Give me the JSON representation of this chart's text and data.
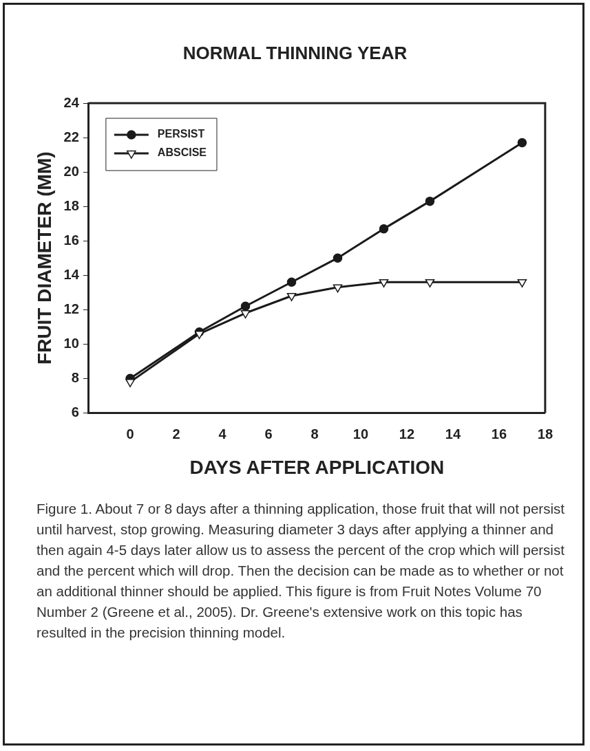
{
  "chart_data": {
    "type": "line",
    "title": "NORMAL THINNING YEAR",
    "xlabel": "DAYS AFTER APPLICATION",
    "ylabel": "FRUIT DIAMETER (MM)",
    "x": [
      0,
      3,
      5,
      7,
      9,
      11,
      13,
      17
    ],
    "series": [
      {
        "name": "PERSIST",
        "color": "#1a1a1a",
        "marker": "circle",
        "values": [
          8.0,
          10.7,
          12.2,
          13.6,
          15.0,
          16.7,
          18.3,
          21.7
        ]
      },
      {
        "name": "ABSCISE",
        "color": "#1a1a1a",
        "marker": "triangle",
        "values": [
          7.8,
          10.6,
          11.8,
          12.8,
          13.3,
          13.6,
          13.6,
          13.6
        ]
      }
    ],
    "xlim": [
      -1.8,
      18
    ],
    "xticks": [
      0,
      2,
      4,
      6,
      8,
      10,
      12,
      14,
      16,
      18
    ],
    "ylim": [
      6,
      24
    ],
    "yticks": [
      6,
      8,
      10,
      12,
      14,
      16,
      18,
      20,
      22,
      24
    ],
    "grid": false,
    "legend": "top left",
    "line_style": "solid",
    "annotations": [
      "Figure 1.  About 7 or 8 days after a thinning application, those fruit that will not persist until harvest, stop growing.  Measuring diameter 3 days after applying a thinner and then again 4-5 days later allow us to assess the percent of the crop which will persist and the percent which will drop.   Then the decision can be made as to whether or not an additional thinner should be applied.  This figure is from Fruit Notes Volume 70 Number 2 (Greene et al., 2005).  Dr. Greene's extensive work on this topic has resulted in the precision thinning model."
    ]
  }
}
